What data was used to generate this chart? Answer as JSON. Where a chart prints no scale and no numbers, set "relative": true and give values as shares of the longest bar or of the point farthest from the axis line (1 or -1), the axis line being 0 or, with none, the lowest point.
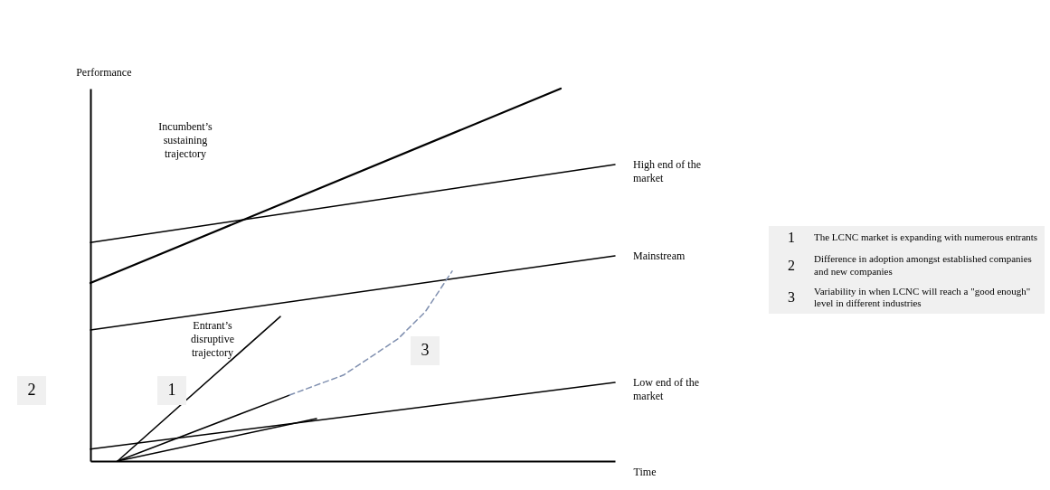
{
  "chart_data": {
    "type": "line",
    "relative": true,
    "xlabel": "Time",
    "ylabel": "Performance",
    "line_style": "solid",
    "marker": "none",
    "categories": [
      null,
      null,
      null,
      null,
      null,
      null,
      null,
      null,
      null,
      null,
      null,
      null,
      null,
      null,
      null,
      null,
      null,
      null,
      null,
      null,
      null,
      null,
      null,
      null,
      null,
      null,
      null,
      null,
      null,
      null,
      null,
      null,
      null,
      null,
      null,
      null,
      null,
      null,
      null,
      null,
      null,
      null,
      null,
      null,
      null,
      null,
      null,
      null,
      null,
      null,
      null,
      null,
      null,
      null,
      null,
      null,
      null,
      null,
      null
    ],
    "series": [
      {
        "color": "#000000",
        "values": [
          0.478,
          null,
          null,
          null,
          null,
          null,
          null,
          null,
          null,
          null,
          null,
          null,
          null,
          null,
          null,
          null,
          null,
          null,
          null,
          null,
          null,
          null,
          null,
          null,
          null,
          null,
          null,
          null,
          null,
          null,
          null,
          null,
          null,
          null,
          null,
          null,
          null,
          null,
          null,
          null,
          null,
          null,
          null,
          null,
          null,
          null,
          null,
          null,
          null,
          null,
          null,
          null,
          1,
          null,
          null,
          null,
          null,
          null,
          null
        ]
      },
      {
        "name": "High end of the market",
        "color": "#000000",
        "values": [
          0.587,
          null,
          null,
          null,
          null,
          null,
          null,
          null,
          null,
          null,
          null,
          null,
          null,
          null,
          null,
          null,
          null,
          null,
          null,
          null,
          null,
          null,
          null,
          null,
          null,
          null,
          null,
          null,
          null,
          null,
          null,
          null,
          null,
          null,
          null,
          null,
          null,
          null,
          null,
          null,
          null,
          null,
          null,
          null,
          null,
          null,
          null,
          null,
          null,
          null,
          null,
          null,
          null,
          null,
          null,
          null,
          null,
          null,
          0.796
        ]
      },
      {
        "name": "Mainstream",
        "color": "#000000",
        "values": [
          0.352,
          null,
          null,
          null,
          null,
          null,
          null,
          null,
          null,
          null,
          null,
          null,
          null,
          null,
          null,
          null,
          null,
          null,
          null,
          null,
          null,
          null,
          null,
          null,
          null,
          null,
          null,
          null,
          null,
          null,
          null,
          null,
          null,
          null,
          null,
          null,
          null,
          null,
          null,
          null,
          null,
          null,
          null,
          null,
          null,
          null,
          null,
          null,
          null,
          null,
          null,
          null,
          null,
          null,
          null,
          null,
          null,
          null,
          0.551
        ]
      },
      {
        "name": "Low end of the market",
        "color": "#000000",
        "values": [
          0.032,
          null,
          null,
          null,
          null,
          null,
          null,
          null,
          null,
          null,
          null,
          null,
          null,
          null,
          null,
          null,
          null,
          null,
          null,
          null,
          null,
          null,
          null,
          null,
          null,
          null,
          null,
          null,
          null,
          null,
          null,
          null,
          null,
          null,
          null,
          null,
          null,
          null,
          null,
          null,
          null,
          null,
          null,
          null,
          null,
          null,
          null,
          null,
          null,
          null,
          null,
          null,
          null,
          null,
          null,
          null,
          null,
          null,
          0.211
        ]
      },
      {
        "color": "#000000",
        "values": [
          null,
          null,
          null,
          0,
          null,
          null,
          null,
          null,
          null,
          null,
          null,
          null,
          null,
          null,
          null,
          null,
          null,
          null,
          null,
          null,
          null,
          0.388,
          null,
          null,
          null,
          null,
          null,
          null,
          null,
          null,
          null,
          null,
          null,
          null,
          null,
          null,
          null,
          null,
          null,
          null,
          null,
          null,
          null,
          null,
          null,
          null,
          null,
          null,
          null,
          null,
          null,
          null,
          null,
          null,
          null,
          null,
          null,
          null,
          null
        ]
      },
      {
        "color": "#000000",
        "values": [
          null,
          null,
          null,
          0,
          null,
          null,
          null,
          null,
          null,
          null,
          null,
          null,
          null,
          null,
          null,
          null,
          null,
          null,
          null,
          null,
          null,
          null,
          0.177,
          null,
          null,
          null,
          null,
          null,
          null,
          null,
          null,
          null,
          null,
          null,
          null,
          null,
          null,
          null,
          null,
          null,
          null,
          null,
          null,
          null,
          null,
          null,
          null,
          null,
          null,
          null,
          null,
          null,
          null,
          null,
          null,
          null,
          null,
          null,
          null
        ]
      },
      {
        "color": "#000000",
        "values": [
          null,
          null,
          null,
          0,
          null,
          null,
          null,
          null,
          null,
          null,
          null,
          null,
          null,
          null,
          null,
          null,
          null,
          null,
          null,
          null,
          null,
          null,
          null,
          null,
          null,
          0.114,
          null,
          null,
          null,
          null,
          null,
          null,
          null,
          null,
          null,
          null,
          null,
          null,
          null,
          null,
          null,
          null,
          null,
          null,
          null,
          null,
          null,
          null,
          null,
          null,
          null,
          null,
          null,
          null,
          null,
          null,
          null,
          null,
          null
        ]
      },
      {
        "color": "#8090b0",
        "line_style": "dashed",
        "values": [
          null,
          null,
          null,
          null,
          null,
          null,
          null,
          null,
          null,
          null,
          null,
          null,
          null,
          null,
          null,
          null,
          null,
          null,
          null,
          null,
          null,
          null,
          0.177,
          null,
          null,
          null,
          null,
          null,
          0.231,
          null,
          null,
          null,
          null,
          null,
          0.328,
          null,
          null,
          0.4,
          null,
          null,
          0.51,
          null,
          null,
          null,
          null,
          null,
          null,
          null,
          null,
          null,
          null,
          null,
          null,
          null,
          null,
          null,
          null,
          null,
          null
        ]
      }
    ],
    "annotations": [
      "Incumbent’s sustaining trajectory",
      "Entrant’s disruptive trajectory",
      "1",
      "3",
      "2",
      "1",
      "The LCNC market is expanding with numerous entrants",
      "2",
      "Difference in adoption amongst established companies and new companies",
      "3",
      "Variability in when LCNC will reach a \"good enough\" level in different industries"
    ]
  }
}
